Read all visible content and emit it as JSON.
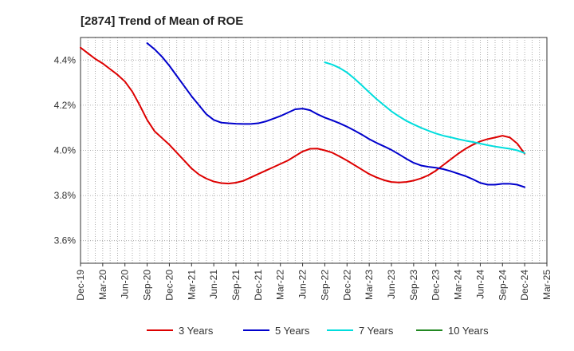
{
  "chart_data": {
    "type": "line",
    "title": "[2874]  Trend of Mean of ROE",
    "xlabel": "",
    "ylabel": "",
    "x_ticks": [
      "Dec-19",
      "Mar-20",
      "Jun-20",
      "Sep-20",
      "Dec-20",
      "Mar-21",
      "Jun-21",
      "Sep-21",
      "Dec-21",
      "Mar-22",
      "Jun-22",
      "Sep-22",
      "Dec-22",
      "Mar-23",
      "Jun-23",
      "Sep-23",
      "Dec-23",
      "Mar-24",
      "Jun-24",
      "Sep-24",
      "Dec-24",
      "Mar-25"
    ],
    "y_ticks": [
      3.6,
      3.8,
      4.0,
      4.2,
      4.4
    ],
    "y_tick_labels": [
      "3.6%",
      "3.8%",
      "4.0%",
      "4.2%",
      "4.4%"
    ],
    "ylim": [
      3.5,
      4.5
    ],
    "x_range": [
      "Dec-19",
      "Mar-25"
    ],
    "grid": true,
    "legend_position": "bottom",
    "series": [
      {
        "name": "3 Years",
        "color": "#dd0000",
        "x": [
          "Dec-19",
          "Jan-20",
          "Feb-20",
          "Mar-20",
          "Apr-20",
          "May-20",
          "Jun-20",
          "Jul-20",
          "Aug-20",
          "Sep-20",
          "Oct-20",
          "Nov-20",
          "Dec-20",
          "Jan-21",
          "Feb-21",
          "Mar-21",
          "Apr-21",
          "May-21",
          "Jun-21",
          "Jul-21",
          "Aug-21",
          "Sep-21",
          "Oct-21",
          "Nov-21",
          "Dec-21",
          "Jan-22",
          "Feb-22",
          "Mar-22",
          "Apr-22",
          "May-22",
          "Jun-22",
          "Jul-22",
          "Aug-22",
          "Sep-22",
          "Oct-22",
          "Nov-22",
          "Dec-22",
          "Jan-23",
          "Feb-23",
          "Mar-23",
          "Apr-23",
          "May-23",
          "Jun-23",
          "Jul-23",
          "Aug-23",
          "Sep-23",
          "Oct-23",
          "Nov-23",
          "Dec-23",
          "Jan-24",
          "Feb-24",
          "Mar-24",
          "Apr-24",
          "May-24",
          "Jun-24",
          "Jul-24",
          "Aug-24",
          "Sep-24",
          "Oct-24",
          "Nov-24",
          "Dec-24"
        ],
        "values": [
          4.455,
          4.43,
          4.405,
          4.385,
          4.36,
          4.335,
          4.305,
          4.26,
          4.2,
          4.135,
          4.085,
          4.055,
          4.025,
          3.99,
          3.955,
          3.92,
          3.893,
          3.875,
          3.862,
          3.855,
          3.853,
          3.857,
          3.865,
          3.88,
          3.895,
          3.91,
          3.925,
          3.94,
          3.955,
          3.975,
          3.995,
          4.007,
          4.008,
          4.0,
          3.99,
          3.973,
          3.955,
          3.935,
          3.915,
          3.895,
          3.88,
          3.868,
          3.86,
          3.858,
          3.86,
          3.866,
          3.876,
          3.89,
          3.91,
          3.935,
          3.96,
          3.985,
          4.007,
          4.025,
          4.04,
          4.05,
          4.057,
          4.065,
          4.057,
          4.03,
          3.985
        ]
      },
      {
        "name": "5 Years",
        "color": "#0000cc",
        "x": [
          "Sep-20",
          "Oct-20",
          "Nov-20",
          "Dec-20",
          "Jan-21",
          "Feb-21",
          "Mar-21",
          "Apr-21",
          "May-21",
          "Jun-21",
          "Jul-21",
          "Aug-21",
          "Sep-21",
          "Oct-21",
          "Nov-21",
          "Dec-21",
          "Jan-22",
          "Feb-22",
          "Mar-22",
          "Apr-22",
          "May-22",
          "Jun-22",
          "Jul-22",
          "Aug-22",
          "Sep-22",
          "Oct-22",
          "Nov-22",
          "Dec-22",
          "Jan-23",
          "Feb-23",
          "Mar-23",
          "Apr-23",
          "May-23",
          "Jun-23",
          "Jul-23",
          "Aug-23",
          "Sep-23",
          "Oct-23",
          "Nov-23",
          "Dec-23",
          "Jan-24",
          "Feb-24",
          "Mar-24",
          "Apr-24",
          "May-24",
          "Jun-24",
          "Jul-24",
          "Aug-24",
          "Sep-24",
          "Oct-24",
          "Nov-24",
          "Dec-24"
        ],
        "values": [
          4.475,
          4.448,
          4.415,
          4.375,
          4.33,
          4.285,
          4.24,
          4.2,
          4.16,
          4.135,
          4.123,
          4.12,
          4.118,
          4.117,
          4.117,
          4.12,
          4.128,
          4.14,
          4.152,
          4.167,
          4.182,
          4.185,
          4.178,
          4.16,
          4.145,
          4.133,
          4.12,
          4.105,
          4.088,
          4.07,
          4.05,
          4.033,
          4.018,
          4.002,
          3.983,
          3.963,
          3.945,
          3.933,
          3.927,
          3.923,
          3.917,
          3.908,
          3.897,
          3.886,
          3.872,
          3.856,
          3.848,
          3.848,
          3.852,
          3.852,
          3.848,
          3.837
        ]
      },
      {
        "name": "7 Years",
        "color": "#00dddd",
        "x": [
          "Sep-22",
          "Oct-22",
          "Nov-22",
          "Dec-22",
          "Jan-23",
          "Feb-23",
          "Mar-23",
          "Apr-23",
          "May-23",
          "Jun-23",
          "Jul-23",
          "Aug-23",
          "Sep-23",
          "Oct-23",
          "Nov-23",
          "Dec-23",
          "Jan-24",
          "Feb-24",
          "Mar-24",
          "Apr-24",
          "May-24",
          "Jun-24",
          "Jul-24",
          "Aug-24",
          "Sep-24",
          "Oct-24",
          "Nov-24",
          "Dec-24"
        ],
        "values": [
          4.39,
          4.38,
          4.365,
          4.345,
          4.318,
          4.288,
          4.257,
          4.227,
          4.2,
          4.173,
          4.151,
          4.131,
          4.115,
          4.1,
          4.087,
          4.075,
          4.065,
          4.058,
          4.05,
          4.043,
          4.037,
          4.03,
          4.023,
          4.017,
          4.012,
          4.007,
          4.0,
          3.988
        ]
      },
      {
        "name": "10 Years",
        "color": "#228822",
        "x": [],
        "values": []
      }
    ]
  }
}
